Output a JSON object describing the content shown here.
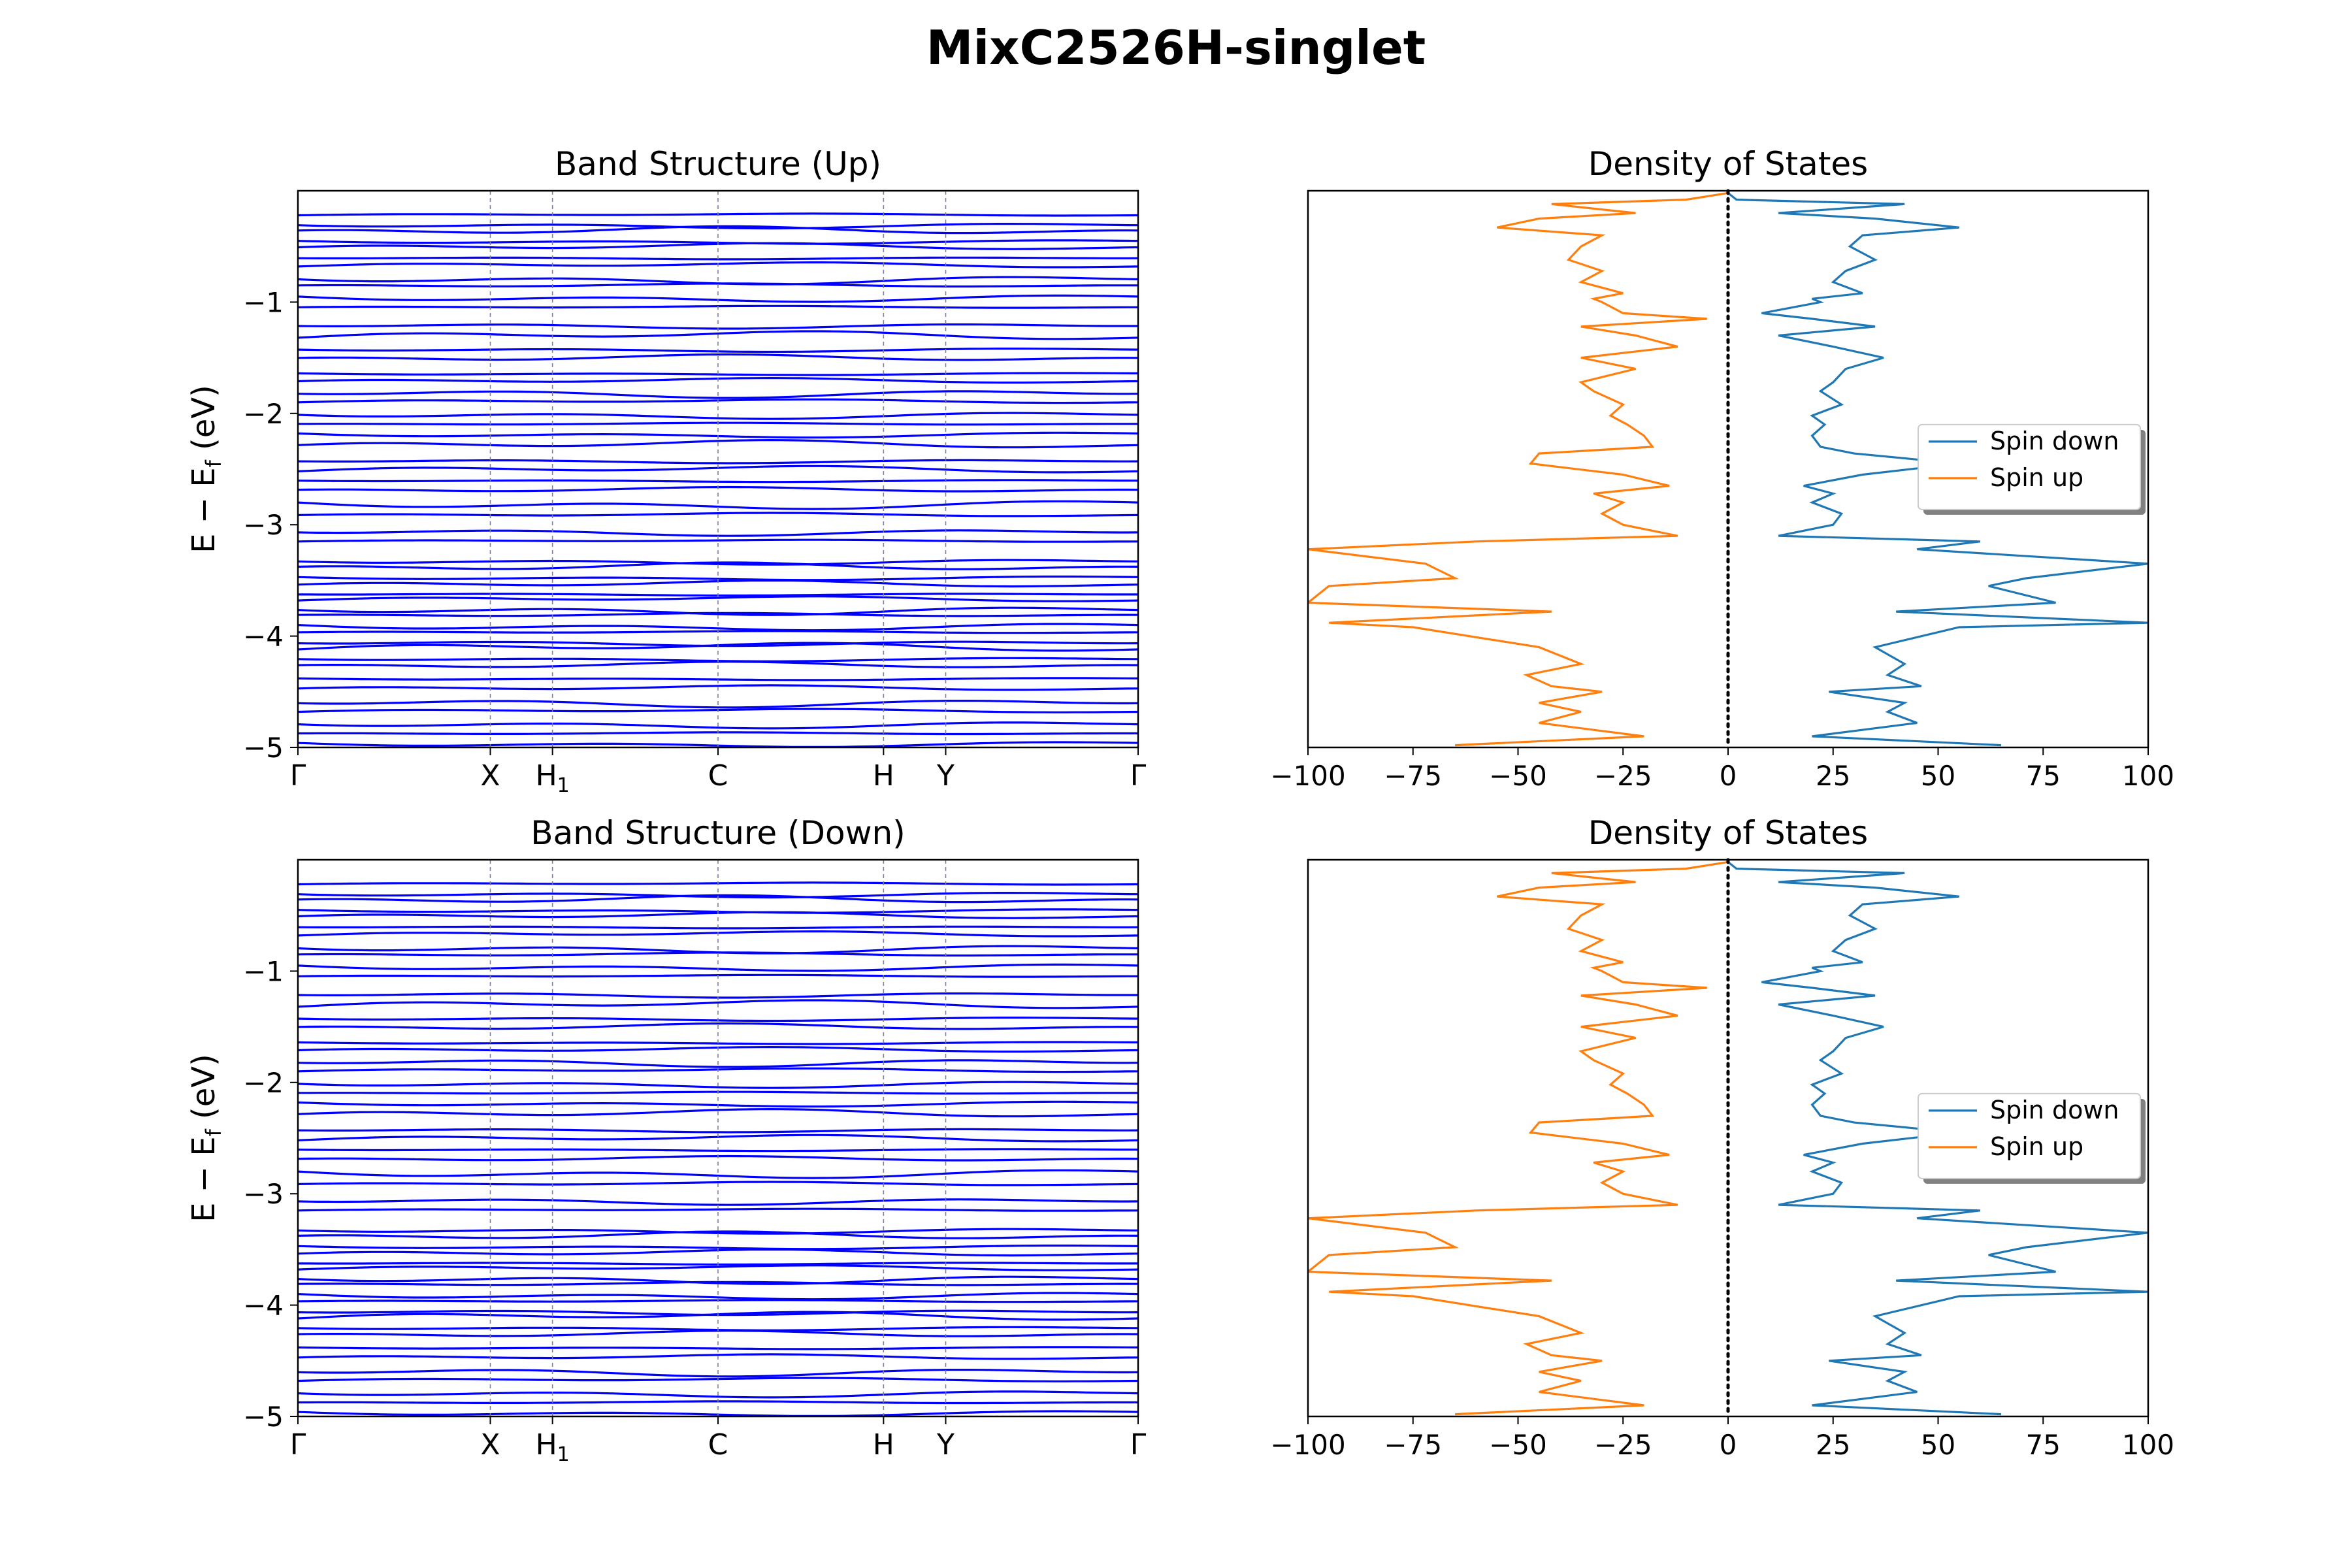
{
  "figure_title": "MixC2526H-singlet",
  "colors": {
    "band": "#0000ff",
    "spin_down": "#1f77b4",
    "spin_up": "#ff7f0e",
    "kpath_line": "#7f7f9a",
    "fermi_line": "#000000"
  },
  "legend": {
    "placement": "center-right",
    "entries": [
      "Spin down",
      "Spin up"
    ]
  },
  "chart_data": [
    {
      "type": "line",
      "panel": "band-up",
      "title": "Band Structure (Up)",
      "ylabel": "E − E_f (eV)",
      "ylim": [
        -5,
        0
      ],
      "yticks": [
        -1,
        -2,
        -3,
        -4,
        -5
      ],
      "x_positions": [
        0,
        0.229,
        0.303,
        0.5,
        0.697,
        0.771,
        1.0
      ],
      "x_labels": [
        "Γ",
        "X",
        "H1",
        "C",
        "H",
        "Y",
        "Γ"
      ],
      "band_energies": [
        -0.22,
        -0.3,
        -0.38,
        -0.45,
        -0.52,
        -0.6,
        -0.68,
        -0.78,
        -0.86,
        -0.95,
        -1.05,
        -1.2,
        -1.32,
        -1.42,
        -1.52,
        -1.64,
        -1.72,
        -1.8,
        -1.9,
        -2.0,
        -2.1,
        -2.18,
        -2.3,
        -2.42,
        -2.52,
        -2.6,
        -2.7,
        -2.8,
        -2.92,
        -3.05,
        -3.15,
        -3.32,
        -3.4,
        -3.47,
        -3.55,
        -3.62,
        -3.68,
        -3.75,
        -3.82,
        -3.9,
        -3.97,
        -4.05,
        -4.12,
        -4.2,
        -4.28,
        -4.38,
        -4.48,
        -4.58,
        -4.68,
        -4.78,
        -4.88,
        -4.96
      ]
    },
    {
      "type": "line",
      "panel": "dos-up",
      "title": "Density of States",
      "xlim": [
        -100,
        100
      ],
      "xticks": [
        -100,
        -75,
        -50,
        -25,
        0,
        25,
        50,
        75,
        100
      ],
      "ylim": [
        -5,
        0
      ],
      "series": [
        {
          "name": "Spin down",
          "energy": [
            -0.02,
            -0.08,
            -0.12,
            -0.2,
            -0.25,
            -0.33,
            -0.4,
            -0.5,
            -0.62,
            -0.72,
            -0.82,
            -0.92,
            -0.97,
            -1.0,
            -1.1,
            -1.15,
            -1.22,
            -1.3,
            -1.4,
            -1.5,
            -1.6,
            -1.72,
            -1.8,
            -1.92,
            -2.02,
            -2.1,
            -2.2,
            -2.3,
            -2.36,
            -2.45,
            -2.55,
            -2.65,
            -2.72,
            -2.8,
            -2.9,
            -3.0,
            -3.1,
            -3.15,
            -3.22,
            -3.35,
            -3.48,
            -3.55,
            -3.7,
            -3.78,
            -3.88,
            -3.92,
            -4.1,
            -4.25,
            -4.35,
            -4.45,
            -4.5,
            -4.6,
            -4.68,
            -4.78,
            -4.9,
            -4.98
          ],
          "dos": [
            0,
            2,
            42,
            12,
            35,
            55,
            32,
            29,
            35,
            28,
            25,
            32,
            20,
            22,
            8,
            20,
            35,
            12,
            25,
            37,
            28,
            25,
            22,
            27,
            20,
            23,
            20,
            22,
            30,
            55,
            32,
            18,
            25,
            20,
            27,
            25,
            12,
            60,
            45,
            100,
            71,
            62,
            78,
            40,
            100,
            55,
            35,
            42,
            38,
            46,
            24,
            42,
            38,
            45,
            20,
            65
          ]
        },
        {
          "name": "Spin up",
          "energy": [
            -0.02,
            -0.08,
            -0.12,
            -0.2,
            -0.25,
            -0.33,
            -0.4,
            -0.5,
            -0.62,
            -0.72,
            -0.82,
            -0.92,
            -0.97,
            -1.0,
            -1.1,
            -1.15,
            -1.22,
            -1.3,
            -1.4,
            -1.5,
            -1.6,
            -1.72,
            -1.8,
            -1.92,
            -2.02,
            -2.1,
            -2.2,
            -2.3,
            -2.36,
            -2.45,
            -2.55,
            -2.65,
            -2.72,
            -2.8,
            -2.9,
            -3.0,
            -3.1,
            -3.15,
            -3.22,
            -3.35,
            -3.48,
            -3.55,
            -3.7,
            -3.78,
            -3.88,
            -3.92,
            -4.1,
            -4.25,
            -4.35,
            -4.45,
            -4.5,
            -4.6,
            -4.68,
            -4.78,
            -4.9,
            -4.98
          ],
          "dos": [
            0,
            -10,
            -42,
            -22,
            -45,
            -55,
            -30,
            -35,
            -38,
            -30,
            -35,
            -25,
            -32,
            -30,
            -25,
            -5,
            -35,
            -22,
            -12,
            -35,
            -22,
            -35,
            -32,
            -25,
            -28,
            -24,
            -20,
            -18,
            -45,
            -47,
            -25,
            -14,
            -32,
            -25,
            -30,
            -25,
            -12,
            -60,
            -100,
            -72,
            -65,
            -95,
            -100,
            -42,
            -95,
            -75,
            -45,
            -35,
            -48,
            -42,
            -30,
            -45,
            -35,
            -45,
            -20,
            -65
          ]
        }
      ]
    },
    {
      "type": "line",
      "panel": "band-down",
      "title": "Band Structure (Down)",
      "ylabel": "E − E_f (eV)",
      "ylim": [
        -5,
        0
      ],
      "yticks": [
        -1,
        -2,
        -3,
        -4,
        -5
      ],
      "x_positions": [
        0,
        0.229,
        0.303,
        0.5,
        0.697,
        0.771,
        1.0
      ],
      "x_labels": [
        "Γ",
        "X",
        "H1",
        "C",
        "H",
        "Y",
        "Γ"
      ],
      "band_energies": [
        -0.22,
        -0.3,
        -0.38,
        -0.45,
        -0.52,
        -0.6,
        -0.68,
        -0.78,
        -0.86,
        -0.95,
        -1.05,
        -1.2,
        -1.32,
        -1.42,
        -1.52,
        -1.64,
        -1.72,
        -1.8,
        -1.9,
        -2.0,
        -2.1,
        -2.18,
        -2.3,
        -2.42,
        -2.52,
        -2.6,
        -2.7,
        -2.8,
        -2.92,
        -3.05,
        -3.15,
        -3.32,
        -3.4,
        -3.47,
        -3.55,
        -3.62,
        -3.68,
        -3.75,
        -3.82,
        -3.9,
        -3.97,
        -4.05,
        -4.12,
        -4.2,
        -4.28,
        -4.38,
        -4.48,
        -4.58,
        -4.68,
        -4.78,
        -4.88,
        -4.96
      ]
    },
    {
      "type": "line",
      "panel": "dos-down",
      "title": "Density of States",
      "xlim": [
        -100,
        100
      ],
      "xticks": [
        -100,
        -75,
        -50,
        -25,
        0,
        25,
        50,
        75,
        100
      ],
      "ylim": [
        -5,
        0
      ],
      "series": [
        {
          "name": "Spin down",
          "energy": [
            -0.02,
            -0.08,
            -0.12,
            -0.2,
            -0.25,
            -0.33,
            -0.4,
            -0.5,
            -0.62,
            -0.72,
            -0.82,
            -0.92,
            -0.97,
            -1.0,
            -1.1,
            -1.15,
            -1.22,
            -1.3,
            -1.4,
            -1.5,
            -1.6,
            -1.72,
            -1.8,
            -1.92,
            -2.02,
            -2.1,
            -2.2,
            -2.3,
            -2.36,
            -2.45,
            -2.55,
            -2.65,
            -2.72,
            -2.8,
            -2.9,
            -3.0,
            -3.1,
            -3.15,
            -3.22,
            -3.35,
            -3.48,
            -3.55,
            -3.7,
            -3.78,
            -3.88,
            -3.92,
            -4.1,
            -4.25,
            -4.35,
            -4.45,
            -4.5,
            -4.6,
            -4.68,
            -4.78,
            -4.9,
            -4.98
          ],
          "dos": [
            0,
            2,
            42,
            12,
            35,
            55,
            32,
            29,
            35,
            28,
            25,
            32,
            20,
            22,
            8,
            20,
            35,
            12,
            25,
            37,
            28,
            25,
            22,
            27,
            20,
            23,
            20,
            22,
            30,
            55,
            32,
            18,
            25,
            20,
            27,
            25,
            12,
            60,
            45,
            100,
            71,
            62,
            78,
            40,
            100,
            55,
            35,
            42,
            38,
            46,
            24,
            42,
            38,
            45,
            20,
            65
          ]
        },
        {
          "name": "Spin up",
          "energy": [
            -0.02,
            -0.08,
            -0.12,
            -0.2,
            -0.25,
            -0.33,
            -0.4,
            -0.5,
            -0.62,
            -0.72,
            -0.82,
            -0.92,
            -0.97,
            -1.0,
            -1.1,
            -1.15,
            -1.22,
            -1.3,
            -1.4,
            -1.5,
            -1.6,
            -1.72,
            -1.8,
            -1.92,
            -2.02,
            -2.1,
            -2.2,
            -2.3,
            -2.36,
            -2.45,
            -2.55,
            -2.65,
            -2.72,
            -2.8,
            -2.9,
            -3.0,
            -3.1,
            -3.15,
            -3.22,
            -3.35,
            -3.48,
            -3.55,
            -3.7,
            -3.78,
            -3.88,
            -3.92,
            -4.1,
            -4.25,
            -4.35,
            -4.45,
            -4.5,
            -4.6,
            -4.68,
            -4.78,
            -4.9,
            -4.98
          ],
          "dos": [
            0,
            -10,
            -42,
            -22,
            -45,
            -55,
            -30,
            -35,
            -38,
            -30,
            -35,
            -25,
            -32,
            -30,
            -25,
            -5,
            -35,
            -22,
            -12,
            -35,
            -22,
            -35,
            -32,
            -25,
            -28,
            -24,
            -20,
            -18,
            -45,
            -47,
            -25,
            -14,
            -32,
            -25,
            -30,
            -25,
            -12,
            -60,
            -100,
            -72,
            -65,
            -95,
            -100,
            -42,
            -95,
            -75,
            -45,
            -35,
            -48,
            -42,
            -30,
            -45,
            -35,
            -45,
            -20,
            -65
          ]
        }
      ]
    }
  ]
}
